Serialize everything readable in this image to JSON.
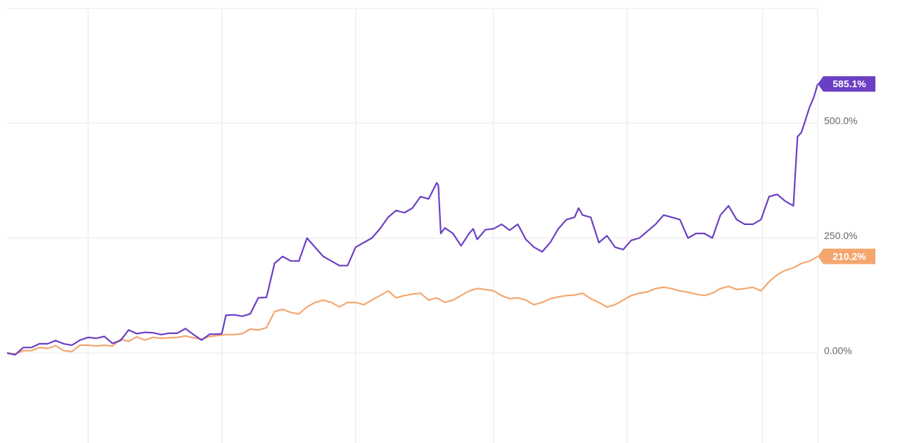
{
  "chart_data": {
    "type": "line",
    "title": "",
    "xlabel": "",
    "ylabel": "",
    "ylim": [
      -195,
      745
    ],
    "y_ticks": [
      {
        "value": 500,
        "label": "500.0%"
      },
      {
        "value": 250,
        "label": "250.0%"
      },
      {
        "value": 0,
        "label": "0.00%"
      }
    ],
    "x_gridlines": [
      0.1,
      0.265,
      0.43,
      0.6,
      0.765,
      0.932
    ],
    "grid": true,
    "series": [
      {
        "color": "#6b3fc4",
        "end_label": "585.1%",
        "values": [
          [
            0,
            0
          ],
          [
            0.01,
            -4
          ],
          [
            0.02,
            12
          ],
          [
            0.03,
            12
          ],
          [
            0.04,
            20
          ],
          [
            0.05,
            20
          ],
          [
            0.06,
            27
          ],
          [
            0.07,
            20
          ],
          [
            0.08,
            17
          ],
          [
            0.09,
            28
          ],
          [
            0.1,
            34
          ],
          [
            0.11,
            32
          ],
          [
            0.12,
            36
          ],
          [
            0.13,
            21
          ],
          [
            0.14,
            27
          ],
          [
            0.15,
            50
          ],
          [
            0.16,
            42
          ],
          [
            0.17,
            45
          ],
          [
            0.18,
            44
          ],
          [
            0.19,
            40
          ],
          [
            0.2,
            43
          ],
          [
            0.21,
            43
          ],
          [
            0.22,
            53
          ],
          [
            0.23,
            40
          ],
          [
            0.24,
            28
          ],
          [
            0.25,
            41
          ],
          [
            0.26,
            41
          ],
          [
            0.265,
            42
          ],
          [
            0.27,
            82
          ],
          [
            0.28,
            83
          ],
          [
            0.29,
            80
          ],
          [
            0.3,
            85
          ],
          [
            0.31,
            120
          ],
          [
            0.32,
            121
          ],
          [
            0.33,
            195
          ],
          [
            0.34,
            210
          ],
          [
            0.35,
            200
          ],
          [
            0.36,
            200
          ],
          [
            0.37,
            250
          ],
          [
            0.38,
            230
          ],
          [
            0.39,
            210
          ],
          [
            0.4,
            200
          ],
          [
            0.41,
            190
          ],
          [
            0.42,
            190
          ],
          [
            0.43,
            230
          ],
          [
            0.44,
            240
          ],
          [
            0.45,
            250
          ],
          [
            0.46,
            270
          ],
          [
            0.47,
            295
          ],
          [
            0.48,
            310
          ],
          [
            0.49,
            305
          ],
          [
            0.5,
            315
          ],
          [
            0.51,
            340
          ],
          [
            0.52,
            335
          ],
          [
            0.53,
            370
          ],
          [
            0.532,
            365
          ],
          [
            0.535,
            260
          ],
          [
            0.54,
            272
          ],
          [
            0.55,
            260
          ],
          [
            0.56,
            233
          ],
          [
            0.57,
            260
          ],
          [
            0.575,
            270
          ],
          [
            0.58,
            247
          ],
          [
            0.59,
            268
          ],
          [
            0.6,
            270
          ],
          [
            0.61,
            280
          ],
          [
            0.62,
            267
          ],
          [
            0.63,
            280
          ],
          [
            0.64,
            247
          ],
          [
            0.65,
            230
          ],
          [
            0.66,
            220
          ],
          [
            0.67,
            240
          ],
          [
            0.68,
            270
          ],
          [
            0.69,
            290
          ],
          [
            0.7,
            295
          ],
          [
            0.705,
            315
          ],
          [
            0.71,
            300
          ],
          [
            0.72,
            295
          ],
          [
            0.73,
            240
          ],
          [
            0.74,
            255
          ],
          [
            0.75,
            230
          ],
          [
            0.76,
            225
          ],
          [
            0.77,
            245
          ],
          [
            0.78,
            250
          ],
          [
            0.79,
            265
          ],
          [
            0.8,
            280
          ],
          [
            0.81,
            300
          ],
          [
            0.82,
            295
          ],
          [
            0.83,
            290
          ],
          [
            0.84,
            250
          ],
          [
            0.85,
            260
          ],
          [
            0.86,
            260
          ],
          [
            0.87,
            250
          ],
          [
            0.88,
            300
          ],
          [
            0.89,
            320
          ],
          [
            0.9,
            290
          ],
          [
            0.91,
            280
          ],
          [
            0.92,
            280
          ],
          [
            0.93,
            290
          ],
          [
            0.94,
            340
          ],
          [
            0.95,
            345
          ],
          [
            0.96,
            330
          ],
          [
            0.97,
            320
          ],
          [
            0.975,
            470
          ],
          [
            0.98,
            480
          ],
          [
            0.99,
            535
          ],
          [
            0.995,
            555
          ],
          [
            1.0,
            585
          ]
        ]
      },
      {
        "color": "#f4a66e",
        "end_label": "210.2%",
        "values": [
          [
            0,
            0
          ],
          [
            0.01,
            -2
          ],
          [
            0.02,
            5
          ],
          [
            0.03,
            5
          ],
          [
            0.04,
            12
          ],
          [
            0.05,
            10
          ],
          [
            0.06,
            16
          ],
          [
            0.07,
            5
          ],
          [
            0.08,
            3
          ],
          [
            0.09,
            17
          ],
          [
            0.1,
            17
          ],
          [
            0.11,
            15
          ],
          [
            0.12,
            17
          ],
          [
            0.13,
            15
          ],
          [
            0.14,
            30
          ],
          [
            0.15,
            25
          ],
          [
            0.16,
            35
          ],
          [
            0.17,
            28
          ],
          [
            0.18,
            34
          ],
          [
            0.19,
            32
          ],
          [
            0.2,
            33
          ],
          [
            0.21,
            34
          ],
          [
            0.22,
            37
          ],
          [
            0.23,
            33
          ],
          [
            0.24,
            30
          ],
          [
            0.25,
            36
          ],
          [
            0.26,
            38
          ],
          [
            0.27,
            40
          ],
          [
            0.28,
            40
          ],
          [
            0.29,
            42
          ],
          [
            0.3,
            52
          ],
          [
            0.31,
            50
          ],
          [
            0.32,
            55
          ],
          [
            0.33,
            90
          ],
          [
            0.34,
            95
          ],
          [
            0.35,
            88
          ],
          [
            0.36,
            85
          ],
          [
            0.37,
            100
          ],
          [
            0.38,
            110
          ],
          [
            0.39,
            115
          ],
          [
            0.4,
            110
          ],
          [
            0.41,
            100
          ],
          [
            0.42,
            110
          ],
          [
            0.43,
            110
          ],
          [
            0.44,
            105
          ],
          [
            0.45,
            115
          ],
          [
            0.46,
            125
          ],
          [
            0.47,
            135
          ],
          [
            0.48,
            120
          ],
          [
            0.49,
            125
          ],
          [
            0.5,
            128
          ],
          [
            0.51,
            130
          ],
          [
            0.52,
            115
          ],
          [
            0.53,
            120
          ],
          [
            0.54,
            110
          ],
          [
            0.55,
            115
          ],
          [
            0.56,
            125
          ],
          [
            0.57,
            135
          ],
          [
            0.58,
            140
          ],
          [
            0.59,
            138
          ],
          [
            0.6,
            135
          ],
          [
            0.61,
            125
          ],
          [
            0.62,
            118
          ],
          [
            0.63,
            120
          ],
          [
            0.64,
            115
          ],
          [
            0.65,
            105
          ],
          [
            0.66,
            110
          ],
          [
            0.67,
            118
          ],
          [
            0.68,
            122
          ],
          [
            0.69,
            125
          ],
          [
            0.7,
            126
          ],
          [
            0.71,
            130
          ],
          [
            0.72,
            118
          ],
          [
            0.73,
            110
          ],
          [
            0.74,
            100
          ],
          [
            0.75,
            105
          ],
          [
            0.76,
            115
          ],
          [
            0.77,
            125
          ],
          [
            0.78,
            130
          ],
          [
            0.79,
            133
          ],
          [
            0.8,
            140
          ],
          [
            0.81,
            143
          ],
          [
            0.82,
            140
          ],
          [
            0.83,
            135
          ],
          [
            0.84,
            132
          ],
          [
            0.85,
            128
          ],
          [
            0.86,
            125
          ],
          [
            0.87,
            130
          ],
          [
            0.88,
            140
          ],
          [
            0.89,
            145
          ],
          [
            0.9,
            138
          ],
          [
            0.91,
            140
          ],
          [
            0.92,
            143
          ],
          [
            0.93,
            135
          ],
          [
            0.94,
            155
          ],
          [
            0.95,
            170
          ],
          [
            0.96,
            180
          ],
          [
            0.97,
            185
          ],
          [
            0.98,
            195
          ],
          [
            0.99,
            200
          ],
          [
            1.0,
            210
          ]
        ]
      }
    ]
  }
}
